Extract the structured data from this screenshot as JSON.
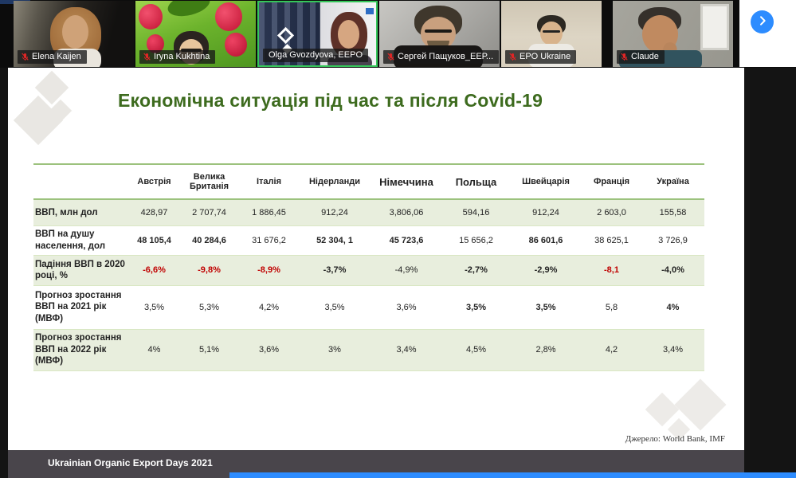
{
  "meeting": {
    "participants": [
      {
        "name": "Elena Kaijen",
        "muted": true
      },
      {
        "name": "Iryna Kukhtina",
        "muted": true
      },
      {
        "name": "Olga Gvozdyova, EEPO",
        "muted": false,
        "active_speaker": true
      },
      {
        "name": "Сергей Пащуков_ЕЕР...",
        "muted": true
      },
      {
        "name": "EPO Ukraine",
        "muted": true
      },
      {
        "name": "Claude",
        "muted": true
      }
    ],
    "icons": {
      "muted_mic": "mic-off-red",
      "next_page": "chevron-right-in-blue-circle"
    }
  },
  "slide": {
    "title": "Економічна ситуація під час та після Covid-19",
    "source": "Джерело: World Bank, IMF",
    "footer": "Ukrainian Organic Export Days 2021",
    "table": {
      "columns": [
        "Австрія",
        "Велика Британія",
        "Італія",
        "Нідерланди",
        "Німеччина",
        "Польща",
        "Швейцарія",
        "Франція",
        "Україна"
      ],
      "emphasized_columns": [
        4,
        5
      ],
      "rows": [
        {
          "label": "ВВП, млн дол",
          "values": [
            "428,97",
            "2 707,74",
            "1 886,45",
            "912,24",
            "3,806,06",
            "594,16",
            "912,24",
            "2 603,0",
            "155,58"
          ],
          "styles": [
            "n",
            "n",
            "n",
            "n",
            "n",
            "n",
            "n",
            "n",
            "n"
          ]
        },
        {
          "label": "ВВП на душу населення, дол",
          "values": [
            "48 105,4",
            "40 284,6",
            "31 676,2",
            "52 304, 1",
            "45 723,6",
            "15 656,2",
            "86 601,6",
            "38 625,1",
            "3 726,9"
          ],
          "styles": [
            "b",
            "b",
            "n",
            "b",
            "b",
            "n",
            "b",
            "n",
            "n"
          ]
        },
        {
          "label": "Падіння ВВП в 2020 році, %",
          "values": [
            "-6,6%",
            "-9,8%",
            "-8,9%",
            "-3,7%",
            "-4,9%",
            "-2,7%",
            "-2,9%",
            "-8,1",
            "-4,0%"
          ],
          "styles": [
            "r",
            "r",
            "r",
            "b",
            "n",
            "b",
            "b",
            "r",
            "b"
          ]
        },
        {
          "label": "Прогноз зростання ВВП на 2021 рік (МВФ)",
          "values": [
            "3,5%",
            "5,3%",
            "4,2%",
            "3,5%",
            "3,6%",
            "3,5%",
            "3,5%",
            "5,8",
            "4%"
          ],
          "styles": [
            "n",
            "n",
            "n",
            "n",
            "n",
            "b",
            "b",
            "n",
            "b"
          ]
        },
        {
          "label": "Прогноз зростання ВВП на 2022 рік (МВФ)",
          "values": [
            "4%",
            "5,1%",
            "3,6%",
            "3%",
            "3,4%",
            "4,5%",
            "2,8%",
            "4,2",
            "3,4%"
          ],
          "styles": [
            "n",
            "n",
            "n",
            "n",
            "n",
            "n",
            "n",
            "n",
            "n"
          ]
        }
      ]
    }
  },
  "colors": {
    "title_green": "#3d6b1e",
    "table_line_green": "#9cc27d",
    "row_shade_green": "#e8eedd",
    "negative_red": "#c00000",
    "footer_bar_gray": "#49454b",
    "zoom_blue": "#2d8cff",
    "active_speaker_green": "#35c75a"
  }
}
